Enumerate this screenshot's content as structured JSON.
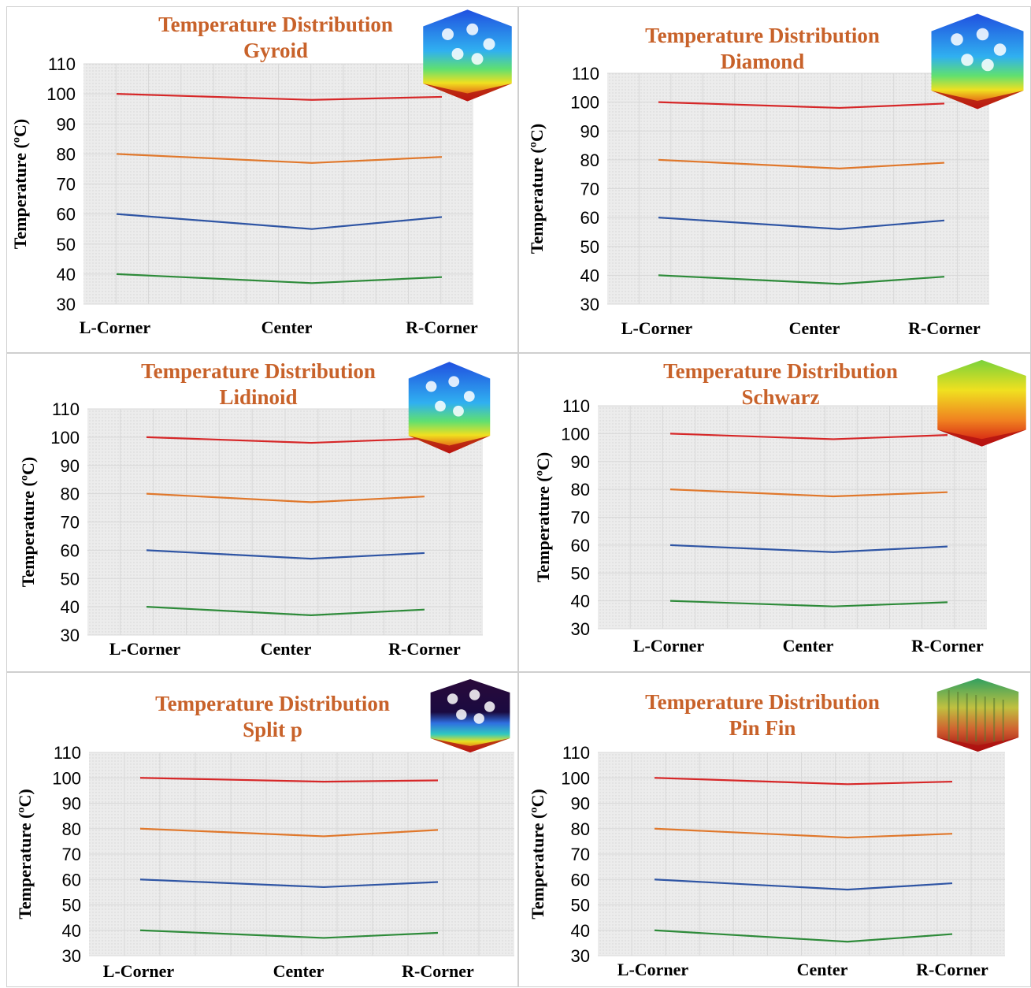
{
  "chart_data": [
    {
      "type": "line",
      "title": "Temperature Distribution",
      "subtitle": "Gyroid",
      "ylabel": "Temperature (ºC)",
      "categories": [
        "L-Corner",
        "Center",
        "R-Corner"
      ],
      "ylim": [
        30,
        110
      ],
      "yticks": [
        30,
        40,
        50,
        60,
        70,
        80,
        90,
        100,
        110
      ],
      "grid": true,
      "thumbnail": "gyroid-thermal-render",
      "series": [
        {
          "color": "#d62728",
          "values": [
            100,
            98,
            99
          ]
        },
        {
          "color": "#e0782c",
          "values": [
            80,
            77,
            79
          ]
        },
        {
          "color": "#2f55a4",
          "values": [
            60,
            55,
            59
          ]
        },
        {
          "color": "#2e8b3a",
          "values": [
            40,
            37,
            39
          ]
        }
      ]
    },
    {
      "type": "line",
      "title": "Temperature Distribution",
      "subtitle": "Diamond",
      "ylabel": "Temperature (ºC)",
      "categories": [
        "L-Corner",
        "Center",
        "R-Corner"
      ],
      "ylim": [
        30,
        110
      ],
      "yticks": [
        30,
        40,
        50,
        60,
        70,
        80,
        90,
        100,
        110
      ],
      "grid": true,
      "thumbnail": "diamond-thermal-render",
      "series": [
        {
          "color": "#d62728",
          "values": [
            100,
            98,
            99.5
          ]
        },
        {
          "color": "#e0782c",
          "values": [
            80,
            77,
            79
          ]
        },
        {
          "color": "#2f55a4",
          "values": [
            60,
            56,
            59
          ]
        },
        {
          "color": "#2e8b3a",
          "values": [
            40,
            37,
            39.5
          ]
        }
      ]
    },
    {
      "type": "line",
      "title": "Temperature Distribution",
      "subtitle": "Lidinoid",
      "ylabel": "Temperature (ºC)",
      "categories": [
        "L-Corner",
        "Center",
        "R-Corner"
      ],
      "ylim": [
        30,
        110
      ],
      "yticks": [
        30,
        40,
        50,
        60,
        70,
        80,
        90,
        100,
        110
      ],
      "grid": true,
      "thumbnail": "lidinoid-thermal-render",
      "series": [
        {
          "color": "#d62728",
          "values": [
            100,
            98,
            99.5
          ]
        },
        {
          "color": "#e0782c",
          "values": [
            80,
            77,
            79
          ]
        },
        {
          "color": "#2f55a4",
          "values": [
            60,
            57,
            59
          ]
        },
        {
          "color": "#2e8b3a",
          "values": [
            40,
            37,
            39
          ]
        }
      ]
    },
    {
      "type": "line",
      "title": "Temperature Distribution",
      "subtitle": "Schwarz",
      "ylabel": "Temperature (ºC)",
      "categories": [
        "L-Corner",
        "Center",
        "R-Corner"
      ],
      "ylim": [
        30,
        110
      ],
      "yticks": [
        30,
        40,
        50,
        60,
        70,
        80,
        90,
        100,
        110
      ],
      "grid": true,
      "thumbnail": "schwarz-thermal-render",
      "series": [
        {
          "color": "#d62728",
          "values": [
            100,
            98,
            99.5
          ]
        },
        {
          "color": "#e0782c",
          "values": [
            80,
            77.5,
            79
          ]
        },
        {
          "color": "#2f55a4",
          "values": [
            60,
            57.5,
            59.5
          ]
        },
        {
          "color": "#2e8b3a",
          "values": [
            40,
            38,
            39.5
          ]
        }
      ]
    },
    {
      "type": "line",
      "title": "Temperature Distribution",
      "subtitle": "Split p",
      "ylabel": "Temperature (ºC)",
      "categories": [
        "L-Corner",
        "Center",
        "R-Corner"
      ],
      "ylim": [
        30,
        110
      ],
      "yticks": [
        30,
        40,
        50,
        60,
        70,
        80,
        90,
        100,
        110
      ],
      "grid": true,
      "thumbnail": "split-p-thermal-render",
      "series": [
        {
          "color": "#d62728",
          "values": [
            100,
            98.5,
            99
          ]
        },
        {
          "color": "#e0782c",
          "values": [
            80,
            77,
            79.5
          ]
        },
        {
          "color": "#2f55a4",
          "values": [
            60,
            57,
            59
          ]
        },
        {
          "color": "#2e8b3a",
          "values": [
            40,
            37,
            39
          ]
        }
      ]
    },
    {
      "type": "line",
      "title": "Temperature Distribution",
      "subtitle": "Pin Fin",
      "ylabel": "Temperature (ºC)",
      "categories": [
        "L-Corner",
        "Center",
        "R-Corner"
      ],
      "ylim": [
        30,
        110
      ],
      "yticks": [
        30,
        40,
        50,
        60,
        70,
        80,
        90,
        100,
        110
      ],
      "grid": true,
      "thumbnail": "pin-fin-thermal-render",
      "series": [
        {
          "color": "#d62728",
          "values": [
            100,
            97.5,
            98.5
          ]
        },
        {
          "color": "#e0782c",
          "values": [
            80,
            76.5,
            78
          ]
        },
        {
          "color": "#2f55a4",
          "values": [
            60,
            56,
            58.5
          ]
        },
        {
          "color": "#2e8b3a",
          "values": [
            40,
            35.5,
            38.5
          ]
        }
      ]
    }
  ]
}
